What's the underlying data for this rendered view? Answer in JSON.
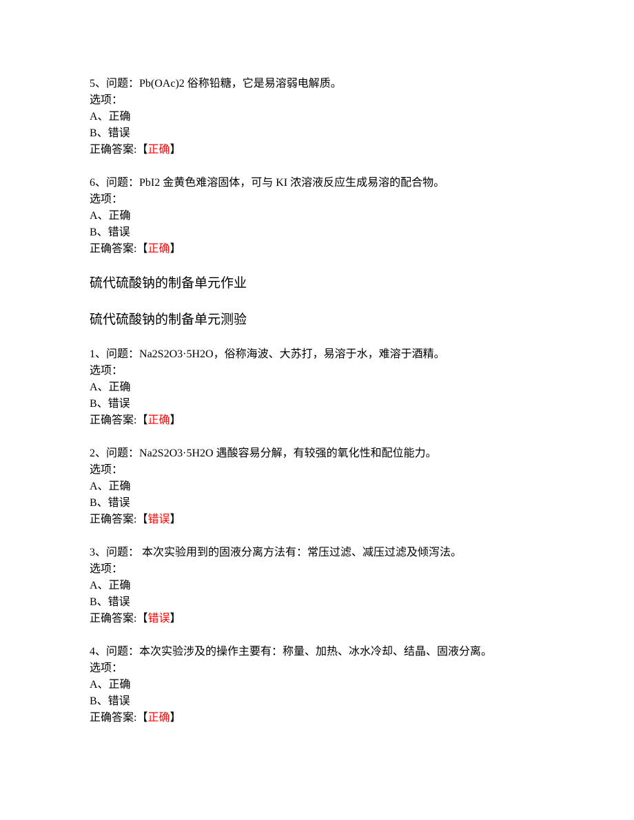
{
  "questions_part1": [
    {
      "number": "5",
      "prompt": "问题：Pb(OAc)2 俗称铅糖，它是易溶弱电解质。",
      "options_label": "选项：",
      "option_a": "A、正确",
      "option_b": "B、错误",
      "answer_prefix": "正确答案:【",
      "answer": "正确",
      "answer_suffix": "】"
    },
    {
      "number": "6",
      "prompt": "问题：PbI2 金黄色难溶固体，可与 KI 浓溶液反应生成易溶的配合物。",
      "options_label": "选项：",
      "option_a": "A、正确",
      "option_b": "B、错误",
      "answer_prefix": "正确答案:【",
      "answer": "正确",
      "answer_suffix": "】"
    }
  ],
  "section_heading_1": "硫代硫酸钠的制备单元作业",
  "section_heading_2": "硫代硫酸钠的制备单元测验",
  "questions_part2": [
    {
      "number": "1",
      "prompt": "问题：Na2S2O3·5H2O，俗称海波、大苏打，易溶于水，难溶于酒精。",
      "options_label": "选项：",
      "option_a": "A、正确",
      "option_b": "B、错误",
      "answer_prefix": "正确答案:【",
      "answer": "正确",
      "answer_suffix": "】"
    },
    {
      "number": "2",
      "prompt": "问题：Na2S2O3·5H2O 遇酸容易分解，有较强的氧化性和配位能力。",
      "options_label": "选项：",
      "option_a": "A、正确",
      "option_b": "B、错误",
      "answer_prefix": "正确答案:【",
      "answer": "错误",
      "answer_suffix": "】"
    },
    {
      "number": "3",
      "prompt": "问题： 本次实验用到的固液分离方法有：常压过滤、减压过滤及倾泻法。",
      "options_label": "选项：",
      "option_a": "A、正确",
      "option_b": "B、错误",
      "answer_prefix": "正确答案:【",
      "answer": "错误",
      "answer_suffix": "】"
    },
    {
      "number": "4",
      "prompt": "问题：本次实验涉及的操作主要有：称量、加热、冰水冷却、结晶、固液分离。",
      "options_label": "选项：",
      "option_a": "A、正确",
      "option_b": "B、错误",
      "answer_prefix": "正确答案:【",
      "answer": "正确",
      "answer_suffix": "】"
    }
  ]
}
